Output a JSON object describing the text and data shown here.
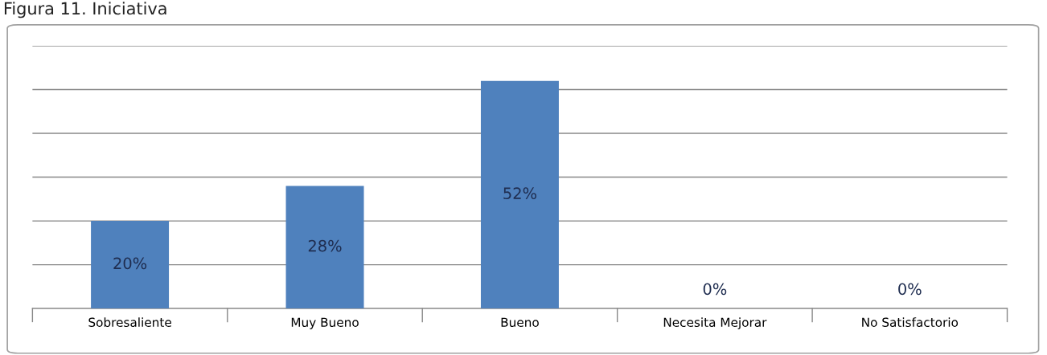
{
  "chart_data": {
    "type": "bar",
    "title": "Figura 11. Iniciativa",
    "categories": [
      "Sobresaliente",
      "Muy Bueno",
      "Bueno",
      "Necesita Mejorar",
      "No Satisfactorio"
    ],
    "values": [
      20,
      28,
      52,
      0,
      0
    ],
    "color": "#4f81bd",
    "value_labels": [
      "20%",
      "28%",
      "52%",
      "0%",
      "0%"
    ],
    "ylim": [
      0,
      60
    ],
    "yticks": [
      {
        "value": 0,
        "label": null
      },
      {
        "value": 10,
        "label": null
      },
      {
        "value": 20,
        "label": null
      },
      {
        "value": 30,
        "label": null
      },
      {
        "value": 40,
        "label": null
      },
      {
        "value": 50,
        "label": null
      },
      {
        "value": 60,
        "label": null
      }
    ],
    "grid": "y",
    "tick_labels": "x"
  }
}
